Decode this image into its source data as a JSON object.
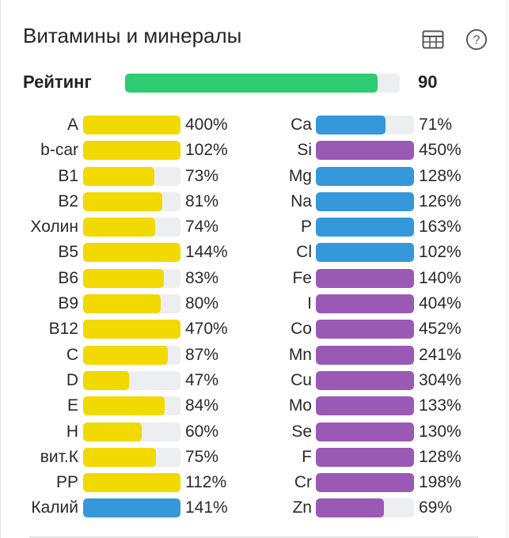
{
  "header": {
    "title": "Витамины и минералы",
    "table_icon": "table-icon",
    "help_icon": "help-icon"
  },
  "rating": {
    "label": "Рейтинг",
    "value": "90",
    "fill_fraction": 0.92,
    "color": "#2ecc71"
  },
  "colors": {
    "vitamin": "#f2d900",
    "mineral_blue": "#3498db",
    "mineral_purple": "#9b59b6",
    "track": "#eceef1"
  },
  "vitamins": [
    {
      "name": "A",
      "pct": "400%",
      "fill": 1.0,
      "color": "yellow"
    },
    {
      "name": "b-car",
      "pct": "102%",
      "fill": 1.0,
      "color": "yellow"
    },
    {
      "name": "B1",
      "pct": "73%",
      "fill": 0.73,
      "color": "yellow"
    },
    {
      "name": "B2",
      "pct": "81%",
      "fill": 0.81,
      "color": "yellow"
    },
    {
      "name": "Холин",
      "pct": "74%",
      "fill": 0.74,
      "color": "yellow"
    },
    {
      "name": "B5",
      "pct": "144%",
      "fill": 1.0,
      "color": "yellow"
    },
    {
      "name": "B6",
      "pct": "83%",
      "fill": 0.83,
      "color": "yellow"
    },
    {
      "name": "B9",
      "pct": "80%",
      "fill": 0.8,
      "color": "yellow"
    },
    {
      "name": "B12",
      "pct": "470%",
      "fill": 1.0,
      "color": "yellow"
    },
    {
      "name": "C",
      "pct": "87%",
      "fill": 0.87,
      "color": "yellow"
    },
    {
      "name": "D",
      "pct": "47%",
      "fill": 0.47,
      "color": "yellow"
    },
    {
      "name": "E",
      "pct": "84%",
      "fill": 0.84,
      "color": "yellow"
    },
    {
      "name": "H",
      "pct": "60%",
      "fill": 0.6,
      "color": "yellow"
    },
    {
      "name": "вит.К",
      "pct": "75%",
      "fill": 0.75,
      "color": "yellow"
    },
    {
      "name": "PP",
      "pct": "112%",
      "fill": 1.0,
      "color": "yellow"
    },
    {
      "name": "Калий",
      "pct": "141%",
      "fill": 1.0,
      "color": "blue"
    }
  ],
  "minerals": [
    {
      "name": "Ca",
      "pct": "71%",
      "fill": 0.71,
      "color": "blue"
    },
    {
      "name": "Si",
      "pct": "450%",
      "fill": 1.0,
      "color": "purple"
    },
    {
      "name": "Mg",
      "pct": "128%",
      "fill": 1.0,
      "color": "blue"
    },
    {
      "name": "Na",
      "pct": "126%",
      "fill": 1.0,
      "color": "blue"
    },
    {
      "name": "P",
      "pct": "163%",
      "fill": 1.0,
      "color": "blue"
    },
    {
      "name": "Cl",
      "pct": "102%",
      "fill": 1.0,
      "color": "blue"
    },
    {
      "name": "Fe",
      "pct": "140%",
      "fill": 1.0,
      "color": "purple"
    },
    {
      "name": "I",
      "pct": "404%",
      "fill": 1.0,
      "color": "purple"
    },
    {
      "name": "Co",
      "pct": "452%",
      "fill": 1.0,
      "color": "purple"
    },
    {
      "name": "Mn",
      "pct": "241%",
      "fill": 1.0,
      "color": "purple"
    },
    {
      "name": "Cu",
      "pct": "304%",
      "fill": 1.0,
      "color": "purple"
    },
    {
      "name": "Mo",
      "pct": "133%",
      "fill": 1.0,
      "color": "purple"
    },
    {
      "name": "Se",
      "pct": "130%",
      "fill": 1.0,
      "color": "purple"
    },
    {
      "name": "F",
      "pct": "128%",
      "fill": 1.0,
      "color": "purple"
    },
    {
      "name": "Cr",
      "pct": "198%",
      "fill": 1.0,
      "color": "purple"
    },
    {
      "name": "Zn",
      "pct": "69%",
      "fill": 0.69,
      "color": "purple"
    }
  ]
}
